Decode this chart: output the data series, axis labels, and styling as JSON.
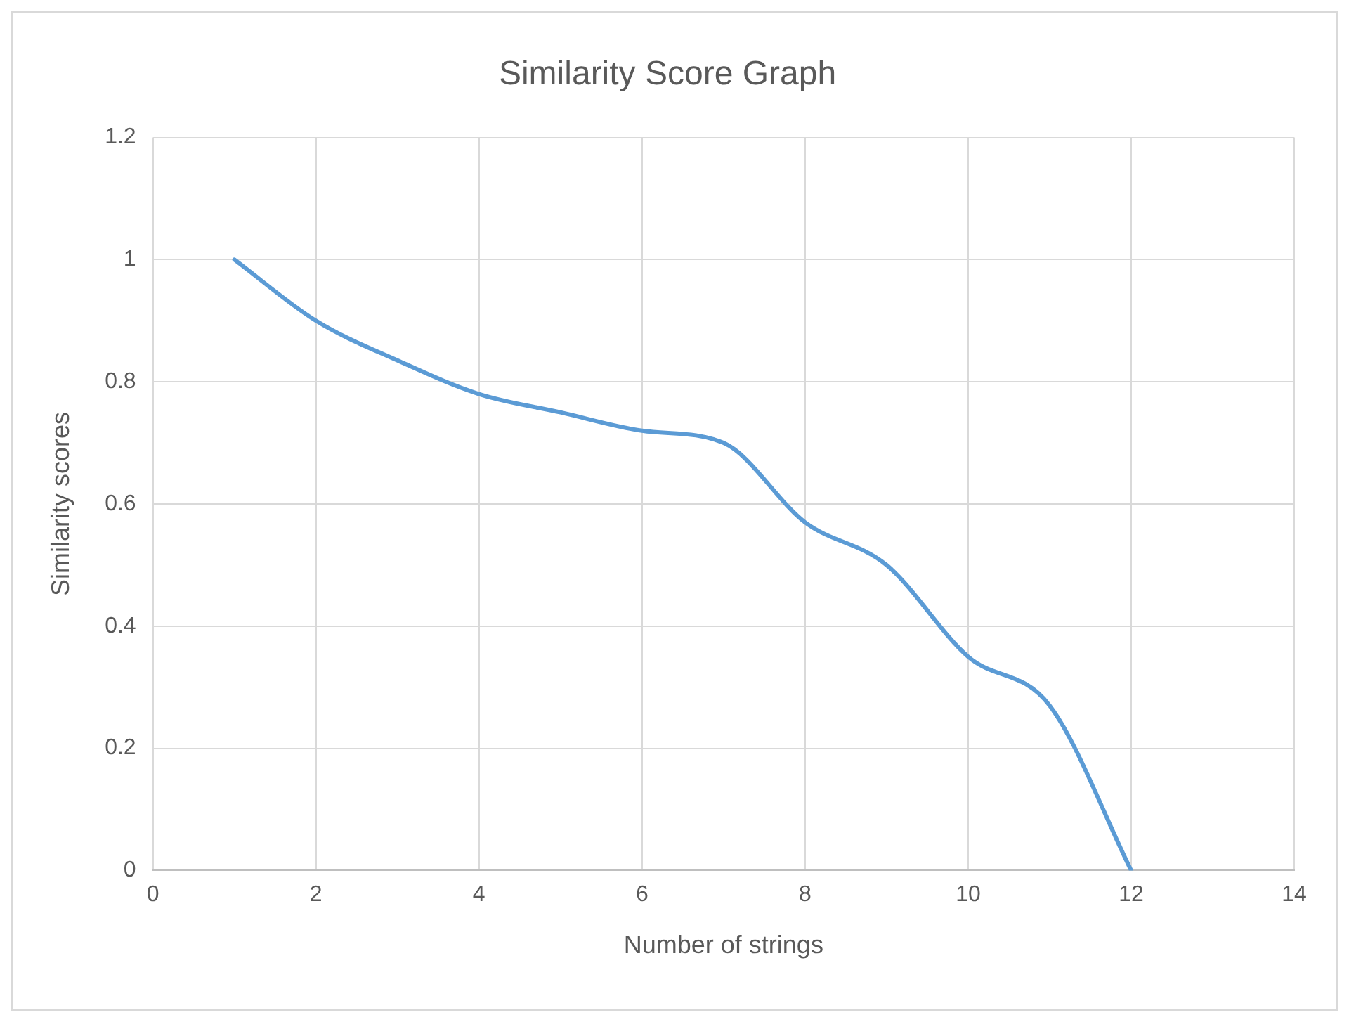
{
  "chart_data": {
    "type": "line",
    "title": "Similarity Score Graph",
    "xlabel": "Number of strings",
    "ylabel": "Similarity scores",
    "x": [
      1,
      2,
      3,
      4,
      5,
      6,
      7,
      8,
      9,
      10,
      11,
      12
    ],
    "series": [
      {
        "color": "#5b9bd5",
        "values": [
          1.0,
          0.9,
          0.835,
          0.78,
          0.75,
          0.72,
          0.7,
          0.57,
          0.5,
          0.35,
          0.27,
          0
        ]
      }
    ],
    "xlim": [
      0,
      14
    ],
    "xticks": [
      0,
      2,
      4,
      6,
      8,
      10,
      12,
      14
    ],
    "ylim": [
      0,
      1.2
    ],
    "yticks": [
      0,
      0.2,
      0.4,
      0.6,
      0.8,
      1,
      1.2
    ],
    "grid": true,
    "marker": "none",
    "line_style": "solid"
  }
}
